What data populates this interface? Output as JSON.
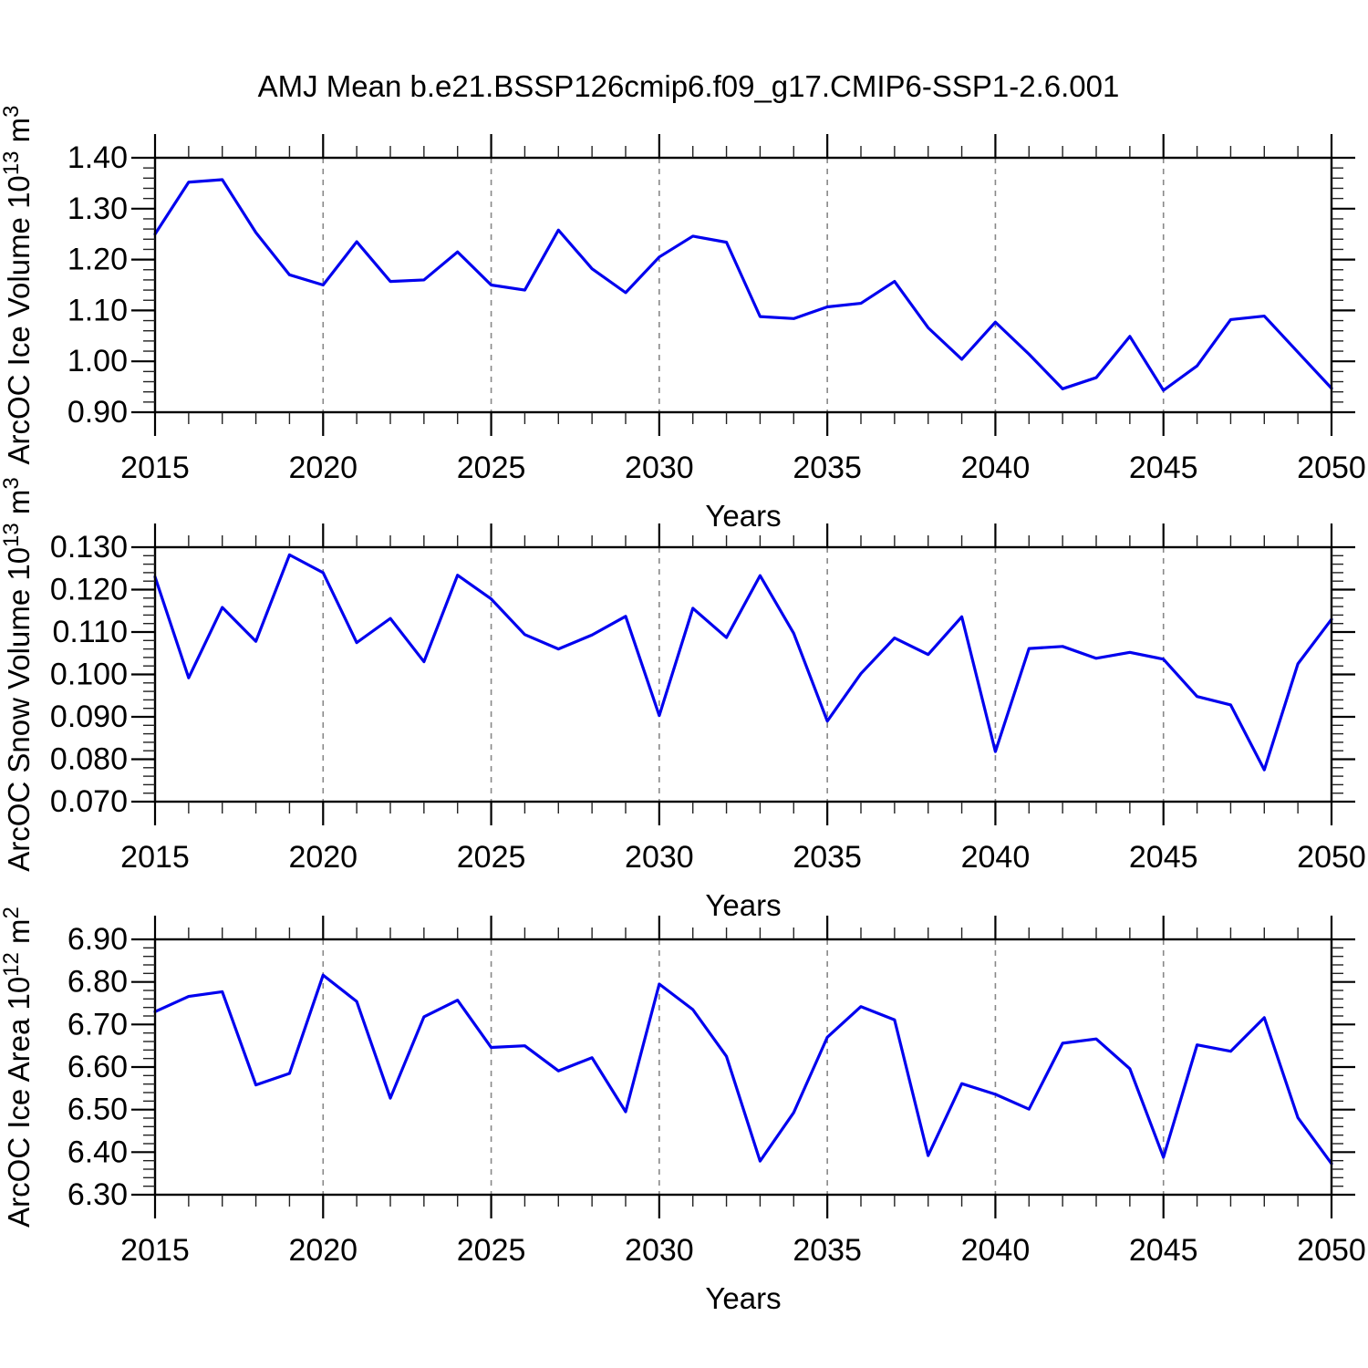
{
  "page": {
    "background": "#ffffff"
  },
  "colors": {
    "line": "#0000ee",
    "frame": "#000000",
    "grid": "#888888",
    "tick_major": "#000000",
    "tick_minor": "#222222",
    "text": "#000000"
  },
  "chart_data": {
    "type": "line",
    "title": "AMJ Mean b.e21.BSSP126cmip6.f09_g17.CMIP6-SSP1-2.6.001",
    "xlabel": "Years",
    "legend": "none",
    "grid": "vertical dashed gridlines at interior 5-year ticks (2020-2045)",
    "x_range": [
      2015,
      2050
    ],
    "x_major_step": 5,
    "x_minor_step": 1,
    "x_major_ticks": [
      2015,
      2020,
      2025,
      2030,
      2035,
      2040,
      2045,
      2050
    ],
    "x_major_tick_labels": [
      "2015",
      "2020",
      "2025",
      "2030",
      "2035",
      "2040",
      "2045",
      "2050"
    ],
    "x": [
      2015,
      2016,
      2017,
      2018,
      2019,
      2020,
      2021,
      2022,
      2023,
      2024,
      2025,
      2026,
      2027,
      2028,
      2029,
      2030,
      2031,
      2032,
      2033,
      2034,
      2035,
      2036,
      2037,
      2038,
      2039,
      2040,
      2041,
      2042,
      2043,
      2044,
      2045,
      2046,
      2047,
      2048,
      2049,
      2050
    ],
    "panels": [
      {
        "name": "ice-volume",
        "ylabel": "ArcOC Ice Volume 10^13 m^3",
        "ylabel_parts": [
          {
            "text": "ArcOC Ice Volume 10"
          },
          {
            "text": "13",
            "sup": true
          },
          {
            "text": " m"
          },
          {
            "text": "3",
            "sup": true
          }
        ],
        "ylim": [
          0.9,
          1.4
        ],
        "y_major_step": 0.1,
        "y_minor_step": 0.02,
        "y_major_ticks": [
          0.9,
          1.0,
          1.1,
          1.2,
          1.3,
          1.4
        ],
        "y_tick_labels": [
          "0.90",
          "1.00",
          "1.10",
          "1.20",
          "1.30",
          "1.40"
        ],
        "values": [
          1.25,
          1.352,
          1.357,
          1.253,
          1.17,
          1.15,
          1.235,
          1.157,
          1.16,
          1.215,
          1.15,
          1.14,
          1.258,
          1.182,
          1.135,
          1.205,
          1.246,
          1.234,
          1.088,
          1.084,
          1.107,
          1.114,
          1.157,
          1.066,
          1.004,
          1.077,
          1.014,
          0.946,
          0.968,
          1.049,
          0.943,
          0.991,
          1.082,
          1.089,
          1.018,
          0.947
        ]
      },
      {
        "name": "snow-volume",
        "ylabel": "ArcOC Snow Volume 10^13 m^3",
        "ylabel_parts": [
          {
            "text": "ArcOC Snow Volume 10"
          },
          {
            "text": "13",
            "sup": true
          },
          {
            "text": " m"
          },
          {
            "text": "3",
            "sup": true
          }
        ],
        "ylim": [
          0.07,
          0.13
        ],
        "y_major_step": 0.01,
        "y_minor_step": 0.002,
        "y_major_ticks": [
          0.07,
          0.08,
          0.09,
          0.1,
          0.11,
          0.12,
          0.13
        ],
        "y_tick_labels": [
          "0.070",
          "0.080",
          "0.090",
          "0.100",
          "0.110",
          "0.120",
          "0.130"
        ],
        "values": [
          0.123,
          0.0992,
          0.1158,
          0.1078,
          0.1282,
          0.124,
          0.1075,
          0.1132,
          0.103,
          0.1234,
          0.1178,
          0.1094,
          0.106,
          0.1093,
          0.1137,
          0.0903,
          0.1156,
          0.1087,
          0.1233,
          0.1097,
          0.089,
          0.1002,
          0.1086,
          0.1047,
          0.1136,
          0.0818,
          0.1061,
          0.1066,
          0.1038,
          0.1052,
          0.1036,
          0.0948,
          0.0928,
          0.0775,
          0.1025,
          0.113
        ]
      },
      {
        "name": "ice-area",
        "ylabel": "ArcOC Ice Area 10^12 m^2",
        "ylabel_parts": [
          {
            "text": "ArcOC Ice Area 10"
          },
          {
            "text": "12",
            "sup": true
          },
          {
            "text": " m"
          },
          {
            "text": "2",
            "sup": true
          }
        ],
        "ylim": [
          6.3,
          6.9
        ],
        "y_major_step": 0.1,
        "y_minor_step": 0.02,
        "y_major_ticks": [
          6.3,
          6.4,
          6.5,
          6.6,
          6.7,
          6.8,
          6.9
        ],
        "y_tick_labels": [
          "6.30",
          "6.40",
          "6.50",
          "6.60",
          "6.70",
          "6.80",
          "6.90"
        ],
        "values": [
          6.73,
          6.766,
          6.777,
          6.558,
          6.585,
          6.816,
          6.754,
          6.527,
          6.718,
          6.757,
          6.646,
          6.65,
          6.591,
          6.622,
          6.495,
          6.795,
          6.735,
          6.625,
          6.379,
          6.493,
          6.67,
          6.742,
          6.711,
          6.392,
          6.561,
          6.536,
          6.501,
          6.656,
          6.666,
          6.596,
          6.388,
          6.652,
          6.637,
          6.716,
          6.481,
          6.373
        ]
      }
    ]
  }
}
